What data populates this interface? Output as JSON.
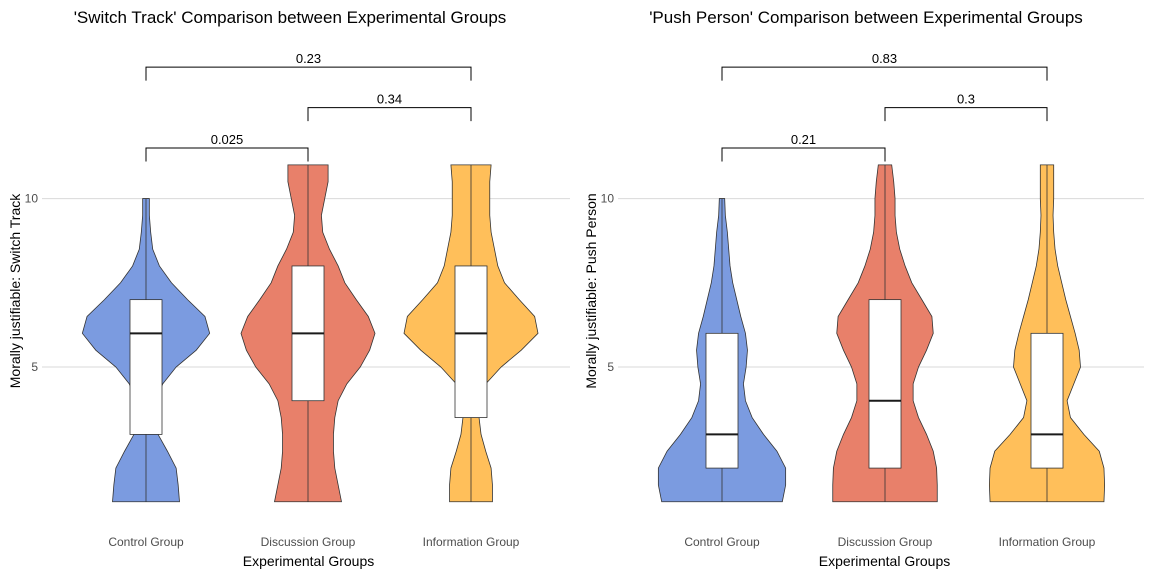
{
  "chart_data": [
    {
      "type": "violin",
      "title": "'Switch Track' Comparison between Experimental Groups",
      "xlabel": "Experimental Groups",
      "ylabel": "Morally justifiable: Switch Track",
      "categories": [
        "Control Group",
        "Discussion Group",
        "Information Group"
      ],
      "y_ticks": [
        5,
        10
      ],
      "ylim": [
        0.4,
        15.3
      ],
      "grid": "horizontal",
      "colors": [
        "#7b9be0",
        "#e8806a",
        "#ffbf5a"
      ],
      "violins": [
        {
          "group": "Control Group",
          "profile": [
            [
              1,
              0.5
            ],
            [
              1.5,
              0.48
            ],
            [
              2,
              0.45
            ],
            [
              2.5,
              0.32
            ],
            [
              3,
              0.18
            ],
            [
              3.5,
              0.12
            ],
            [
              4,
              0.15
            ],
            [
              4.5,
              0.25
            ],
            [
              5,
              0.45
            ],
            [
              5.5,
              0.75
            ],
            [
              6,
              0.95
            ],
            [
              6.5,
              0.88
            ],
            [
              7,
              0.62
            ],
            [
              7.5,
              0.38
            ],
            [
              8,
              0.2
            ],
            [
              8.5,
              0.1
            ],
            [
              9,
              0.07
            ],
            [
              9.5,
              0.05
            ],
            [
              10,
              0.05
            ]
          ]
        },
        {
          "group": "Discussion Group",
          "profile": [
            [
              1,
              0.5
            ],
            [
              1.5,
              0.45
            ],
            [
              2,
              0.4
            ],
            [
              2.5,
              0.38
            ],
            [
              3,
              0.38
            ],
            [
              3.5,
              0.4
            ],
            [
              4,
              0.45
            ],
            [
              4.5,
              0.58
            ],
            [
              5,
              0.78
            ],
            [
              5.5,
              0.92
            ],
            [
              6,
              1.0
            ],
            [
              6.5,
              0.9
            ],
            [
              7,
              0.72
            ],
            [
              7.5,
              0.55
            ],
            [
              8,
              0.45
            ],
            [
              8.5,
              0.32
            ],
            [
              9,
              0.22
            ],
            [
              9.5,
              0.2
            ],
            [
              10,
              0.25
            ],
            [
              10.5,
              0.3
            ],
            [
              11,
              0.3
            ]
          ]
        },
        {
          "group": "Information Group",
          "profile": [
            [
              1,
              0.32
            ],
            [
              1.5,
              0.32
            ],
            [
              2,
              0.3
            ],
            [
              2.5,
              0.22
            ],
            [
              3,
              0.15
            ],
            [
              3.5,
              0.12
            ],
            [
              4,
              0.14
            ],
            [
              4.5,
              0.22
            ],
            [
              5,
              0.45
            ],
            [
              5.5,
              0.75
            ],
            [
              6,
              1.0
            ],
            [
              6.5,
              0.95
            ],
            [
              7,
              0.72
            ],
            [
              7.5,
              0.5
            ],
            [
              8,
              0.4
            ],
            [
              8.5,
              0.35
            ],
            [
              9,
              0.3
            ],
            [
              9.5,
              0.28
            ],
            [
              10,
              0.28
            ],
            [
              10.5,
              0.28
            ],
            [
              11,
              0.3
            ]
          ]
        }
      ],
      "boxes": [
        {
          "group": "Control Group",
          "q1": 3,
          "median": 6,
          "q3": 7,
          "whisker_low": 1,
          "whisker_high": 10
        },
        {
          "group": "Discussion Group",
          "q1": 4,
          "median": 6,
          "q3": 8,
          "whisker_low": 1,
          "whisker_high": 11
        },
        {
          "group": "Information Group",
          "q1": 3.5,
          "median": 6,
          "q3": 8,
          "whisker_low": 1,
          "whisker_high": 11
        }
      ],
      "comparisons": [
        {
          "from": 0,
          "to": 1,
          "p": "0.025",
          "y": 11.5
        },
        {
          "from": 1,
          "to": 2,
          "p": "0.34",
          "y": 12.7
        },
        {
          "from": 0,
          "to": 2,
          "p": "0.23",
          "y": 13.9
        }
      ]
    },
    {
      "type": "violin",
      "title": "'Push Person' Comparison between Experimental Groups",
      "xlabel": "Experimental Groups",
      "ylabel": "Morally justifiable: Push Person",
      "categories": [
        "Control Group",
        "Discussion Group",
        "Information Group"
      ],
      "y_ticks": [
        5,
        10
      ],
      "ylim": [
        0.4,
        15.3
      ],
      "grid": "horizontal",
      "colors": [
        "#7b9be0",
        "#e8806a",
        "#ffbf5a"
      ],
      "violins": [
        {
          "group": "Control Group",
          "profile": [
            [
              1,
              0.9
            ],
            [
              1.5,
              0.95
            ],
            [
              2,
              0.95
            ],
            [
              2.5,
              0.82
            ],
            [
              3,
              0.62
            ],
            [
              3.5,
              0.45
            ],
            [
              4,
              0.35
            ],
            [
              4.5,
              0.32
            ],
            [
              5,
              0.36
            ],
            [
              5.5,
              0.38
            ],
            [
              6,
              0.35
            ],
            [
              6.5,
              0.28
            ],
            [
              7,
              0.22
            ],
            [
              7.5,
              0.16
            ],
            [
              8,
              0.12
            ],
            [
              8.5,
              0.1
            ],
            [
              9,
              0.08
            ],
            [
              9.5,
              0.05
            ],
            [
              10,
              0.04
            ]
          ]
        },
        {
          "group": "Discussion Group",
          "profile": [
            [
              1,
              0.78
            ],
            [
              1.5,
              0.78
            ],
            [
              2,
              0.77
            ],
            [
              2.5,
              0.72
            ],
            [
              3,
              0.62
            ],
            [
              3.5,
              0.5
            ],
            [
              4,
              0.42
            ],
            [
              4.5,
              0.42
            ],
            [
              5,
              0.5
            ],
            [
              5.5,
              0.62
            ],
            [
              6,
              0.72
            ],
            [
              6.5,
              0.7
            ],
            [
              7,
              0.55
            ],
            [
              7.5,
              0.4
            ],
            [
              8,
              0.3
            ],
            [
              8.5,
              0.22
            ],
            [
              9,
              0.17
            ],
            [
              9.5,
              0.15
            ],
            [
              10,
              0.15
            ],
            [
              10.5,
              0.13
            ],
            [
              11,
              0.1
            ]
          ]
        },
        {
          "group": "Information Group",
          "profile": [
            [
              1,
              0.85
            ],
            [
              1.5,
              0.86
            ],
            [
              2,
              0.85
            ],
            [
              2.5,
              0.78
            ],
            [
              3,
              0.55
            ],
            [
              3.5,
              0.35
            ],
            [
              4,
              0.3
            ],
            [
              4.5,
              0.4
            ],
            [
              5,
              0.5
            ],
            [
              5.5,
              0.48
            ],
            [
              6,
              0.42
            ],
            [
              6.5,
              0.35
            ],
            [
              7,
              0.28
            ],
            [
              7.5,
              0.22
            ],
            [
              8,
              0.16
            ],
            [
              8.5,
              0.12
            ],
            [
              9,
              0.1
            ],
            [
              9.5,
              0.09
            ],
            [
              10,
              0.1
            ],
            [
              10.5,
              0.1
            ],
            [
              11,
              0.1
            ]
          ]
        }
      ],
      "boxes": [
        {
          "group": "Control Group",
          "q1": 2,
          "median": 3,
          "q3": 6,
          "whisker_low": 1,
          "whisker_high": 10
        },
        {
          "group": "Discussion Group",
          "q1": 2,
          "median": 4,
          "q3": 7,
          "whisker_low": 1,
          "whisker_high": 11
        },
        {
          "group": "Information Group",
          "q1": 2,
          "median": 3,
          "q3": 6,
          "whisker_low": 1,
          "whisker_high": 11
        }
      ],
      "comparisons": [
        {
          "from": 0,
          "to": 1,
          "p": "0.21",
          "y": 11.5
        },
        {
          "from": 1,
          "to": 2,
          "p": "0.3",
          "y": 12.7
        },
        {
          "from": 0,
          "to": 2,
          "p": "0.83",
          "y": 13.9
        }
      ]
    }
  ]
}
